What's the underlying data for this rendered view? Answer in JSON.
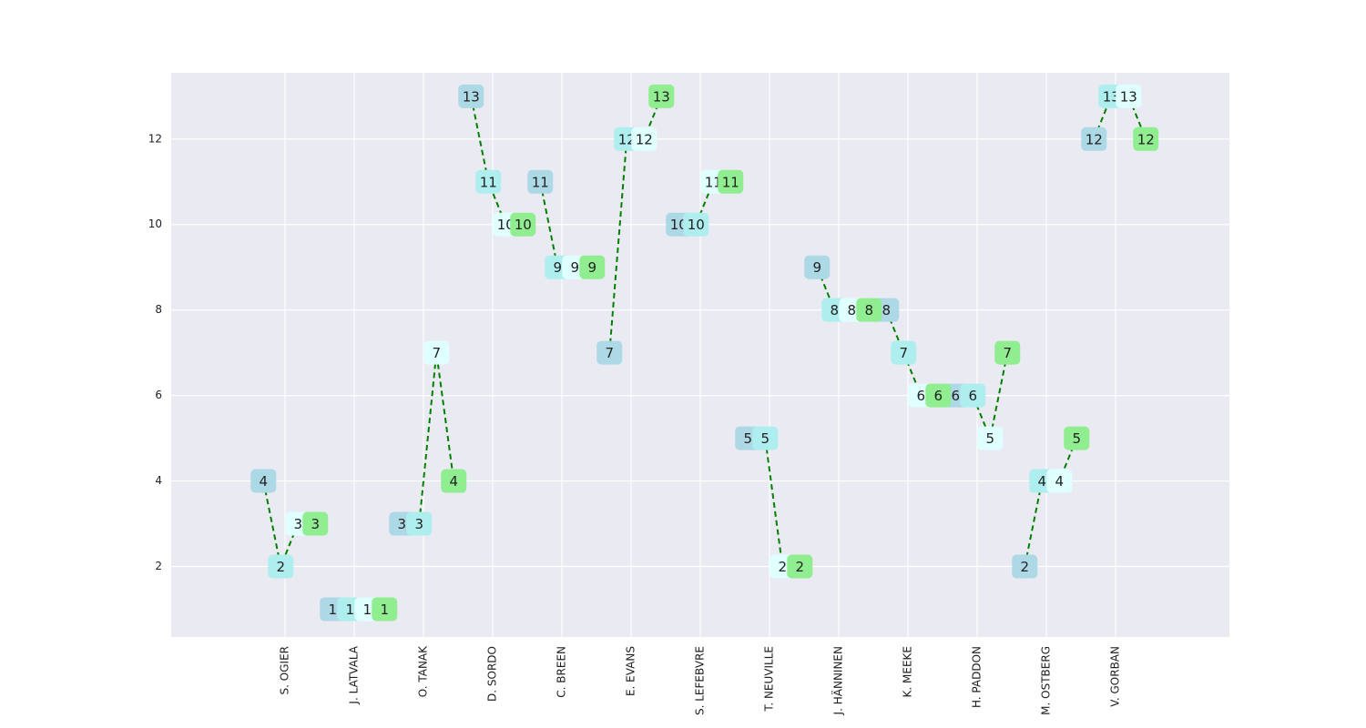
{
  "chart_data": {
    "type": "line",
    "categories": [
      "S. OGIER",
      "J. LATVALA",
      "O. TANAK",
      "D. SORDO",
      "C. BREEN",
      "E. EVANS",
      "S. LEFEBVRE",
      "T. NEUVILLE",
      "J. HÄNNINEN",
      "K. MEEKE",
      "H. PADDON",
      "M. OSTBERG",
      "V. GORBAN"
    ],
    "series": [
      {
        "color": "#add8e6",
        "values": [
          4,
          1,
          3,
          13,
          11,
          7,
          10,
          5,
          9,
          8,
          6,
          2,
          12
        ]
      },
      {
        "color": "#afeeee",
        "values": [
          2,
          1,
          3,
          11,
          9,
          12,
          10,
          5,
          8,
          7,
          6,
          4,
          13
        ]
      },
      {
        "color": "#e0ffff",
        "values": [
          3,
          1,
          7,
          10,
          9,
          12,
          11,
          2,
          8,
          6,
          5,
          4,
          13
        ]
      },
      {
        "color": "#90ee90",
        "values": [
          3,
          1,
          4,
          10,
          9,
          13,
          11,
          2,
          8,
          6,
          7,
          5,
          12
        ]
      }
    ],
    "line_color": "#008000",
    "ylim": [
      0.35,
      13.55
    ],
    "yticks": [
      2,
      4,
      6,
      8,
      10,
      12
    ],
    "grid": true
  }
}
